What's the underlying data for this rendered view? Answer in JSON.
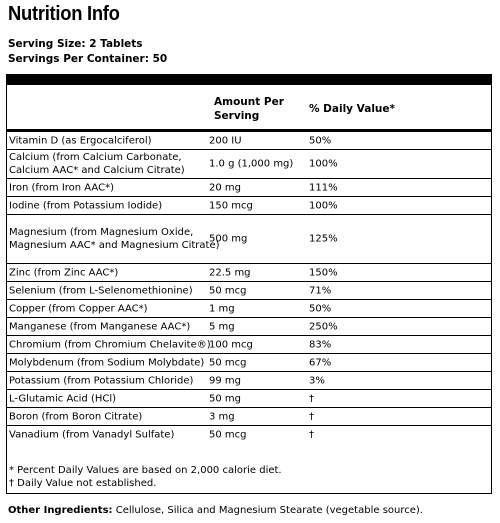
{
  "title": "Nutrition Info",
  "serving_size": "Serving Size: 2 Tablets",
  "servings_per_container": "Servings Per Container: 50",
  "header": {
    "amount": "Amount Per Serving",
    "daily_value": "% Daily Value*"
  },
  "rows": [
    {
      "name": "Vitamin D (as Ergocalciferol)",
      "amount": "200 IU",
      "dv": "50%"
    },
    {
      "name": "Calcium (from Calcium Carbonate,\nCalcium AAC* and Calcium Citrate)",
      "amount": "1.0 g (1,000 mg)",
      "dv": "100%"
    },
    {
      "name": "Iron (from Iron AAC*)",
      "amount": "20 mg",
      "dv": "111%"
    },
    {
      "name": "Iodine (from Potassium Iodide)",
      "amount": "150 mcg",
      "dv": "100%"
    },
    {
      "name": "Magnesium (from Magnesium Oxide,\nMagnesium AAC* and Magnesium Citrate)",
      "amount": "500 mg",
      "dv": "125%"
    },
    {
      "name": "Zinc (from Zinc AAC*)",
      "amount": "22.5 mg",
      "dv": "150%"
    },
    {
      "name": "Selenium (from L-Selenomethionine)",
      "amount": "50 mcg",
      "dv": "71%"
    },
    {
      "name": "Copper (from Copper AAC*)",
      "amount": "1 mg",
      "dv": "50%"
    },
    {
      "name": "Manganese (from Manganese AAC*)",
      "amount": "5 mg",
      "dv": "250%"
    },
    {
      "name": "Chromium (from Chromium Chelavite®)",
      "amount": "100 mcg",
      "dv": "83%"
    },
    {
      "name": "Molybdenum (from Sodium Molybdate)",
      "amount": "50 mcg",
      "dv": "67%"
    },
    {
      "name": "Potassium (from Potassium Chloride)",
      "amount": "99 mg",
      "dv": "3%"
    },
    {
      "name": "L-Glutamic Acid (HCl)",
      "amount": "50 mg",
      "dv": "†"
    },
    {
      "name": "Boron (from Boron Citrate)",
      "amount": "3 mg",
      "dv": "†"
    },
    {
      "name": "Vanadium (from Vanadyl Sulfate)",
      "amount": "50 mcg",
      "dv": "†"
    }
  ],
  "notes": {
    "percent_dv": "* Percent Daily Values are based on 2,000 calorie diet.",
    "not_established": "† Daily Value not established."
  },
  "other_ingredients": {
    "label": "Other Ingredients:",
    "text": " Cellulose, Silica and Magnesium Stearate (vegetable source)."
  }
}
